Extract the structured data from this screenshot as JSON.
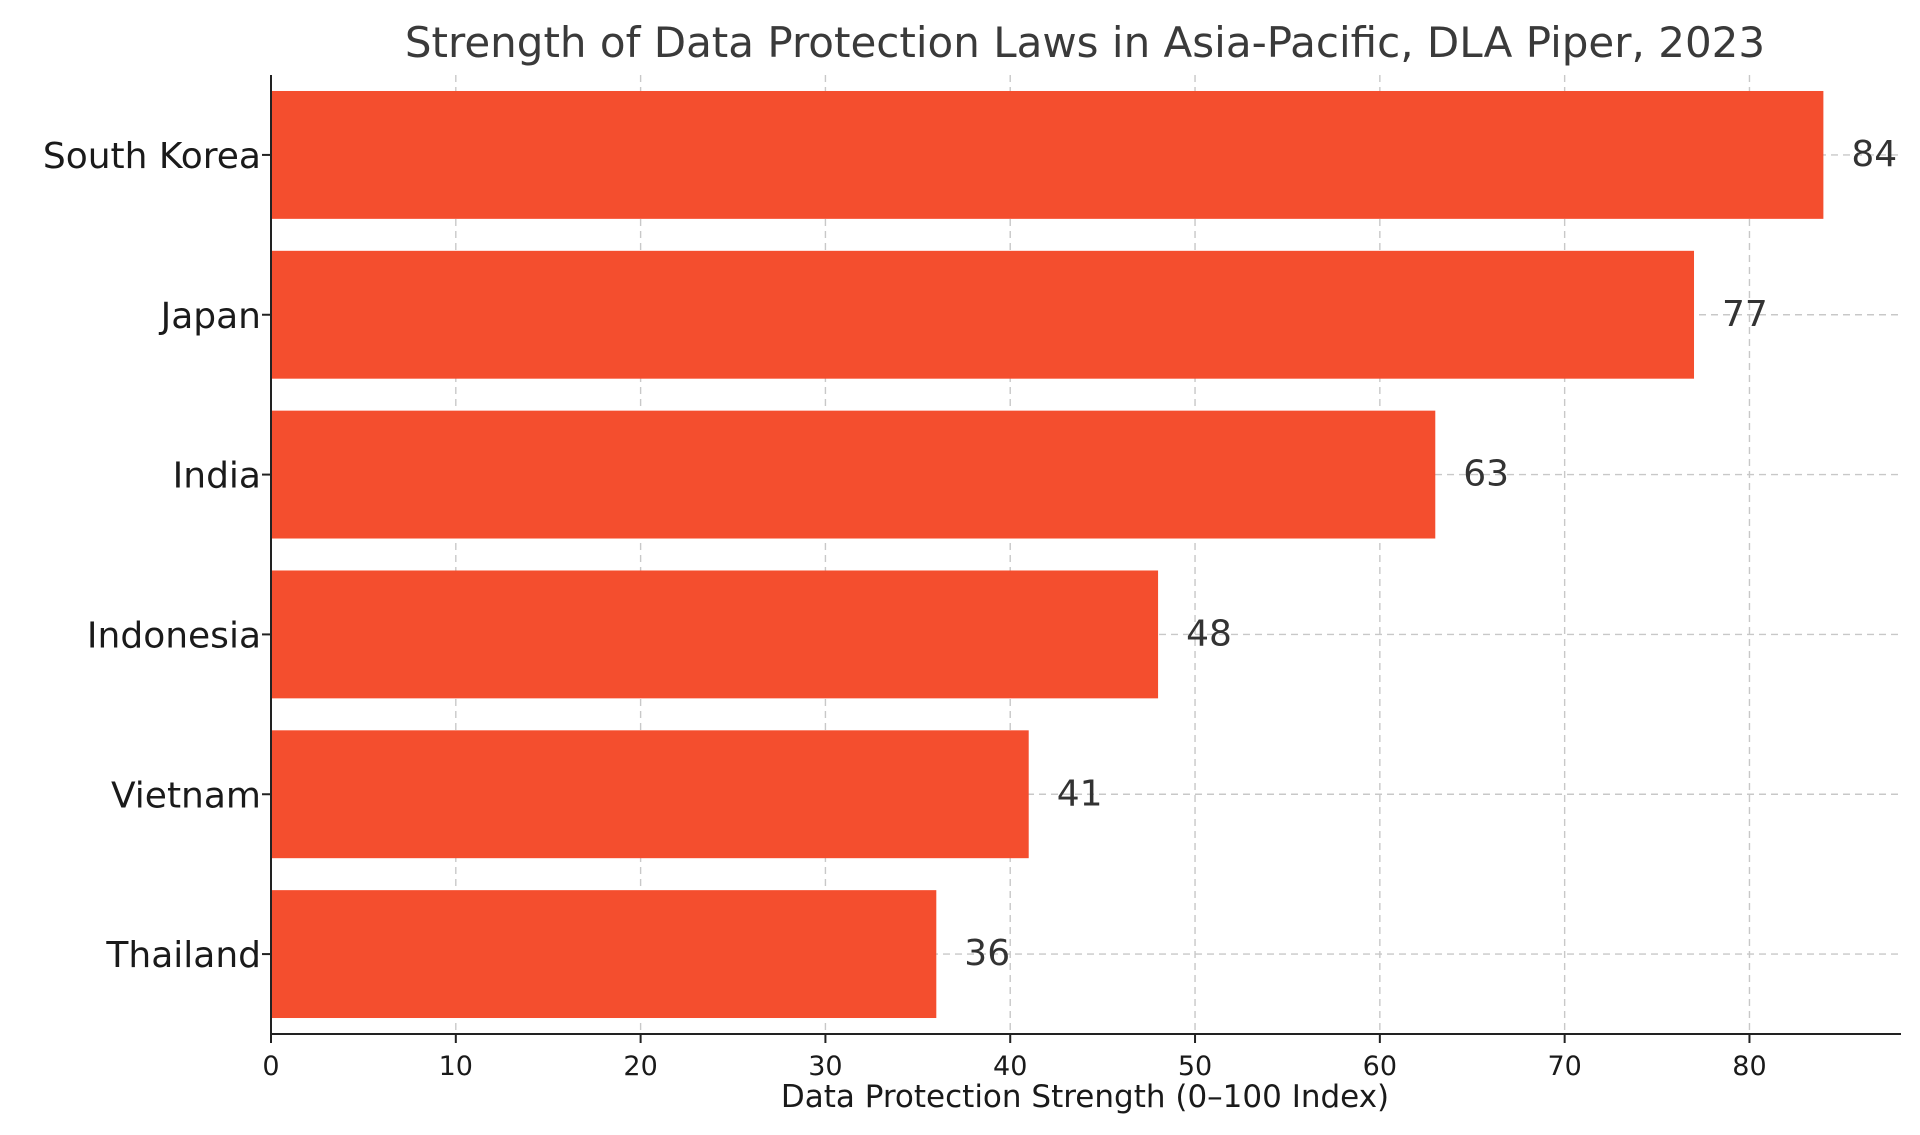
{
  "chart_data": {
    "type": "bar",
    "orientation": "horizontal",
    "title": "Strength of Data Protection Laws in Asia-Pacific, DLA Piper, 2023",
    "xlabel": "Data Protection Strength (0–100 Index)",
    "ylabel": "",
    "categories": [
      "South Korea",
      "Japan",
      "India",
      "Indonesia",
      "Vietnam",
      "Thailand"
    ],
    "values": [
      84,
      77,
      63,
      48,
      41,
      36
    ],
    "value_labels": [
      "84",
      "77",
      "63",
      "48",
      "41",
      "36"
    ],
    "xlim": [
      0,
      88.2
    ],
    "xticks": [
      "0",
      "10",
      "20",
      "30",
      "40",
      "50",
      "60",
      "70",
      "80"
    ],
    "grid": true,
    "bar_color": "#f44e2e"
  }
}
